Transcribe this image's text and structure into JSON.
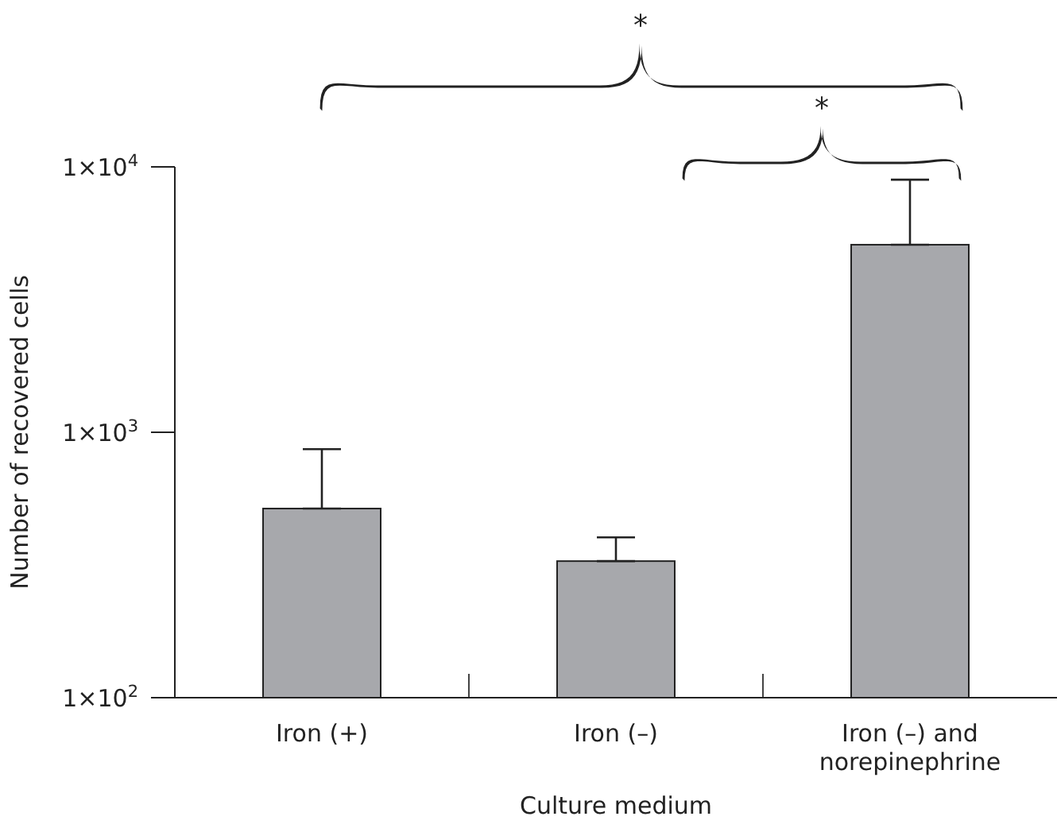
{
  "chart_data": {
    "type": "bar",
    "xlabel": "Culture medium",
    "ylabel": "Number of recovered cells",
    "categories": [
      "Iron (+)",
      "Iron (–)",
      "Iron (–) and norepinephrine"
    ],
    "values": [
      516,
      327,
      5090
    ],
    "errors": [
      [
        516,
        864
      ],
      [
        327,
        402
      ],
      [
        5090,
        8950
      ]
    ],
    "color": "#a7a8ac",
    "log": true,
    "ylim": [
      100,
      10000
    ],
    "yticks": [
      {
        "value": 100,
        "label": "1×10$^{2}$"
      },
      {
        "value": 1000,
        "label": "1×10$^{3}$"
      },
      {
        "value": 10000,
        "label": "1×10$^{4}$"
      }
    ],
    "grid": false,
    "legend": false,
    "annotations": [
      "*",
      "*"
    ]
  }
}
